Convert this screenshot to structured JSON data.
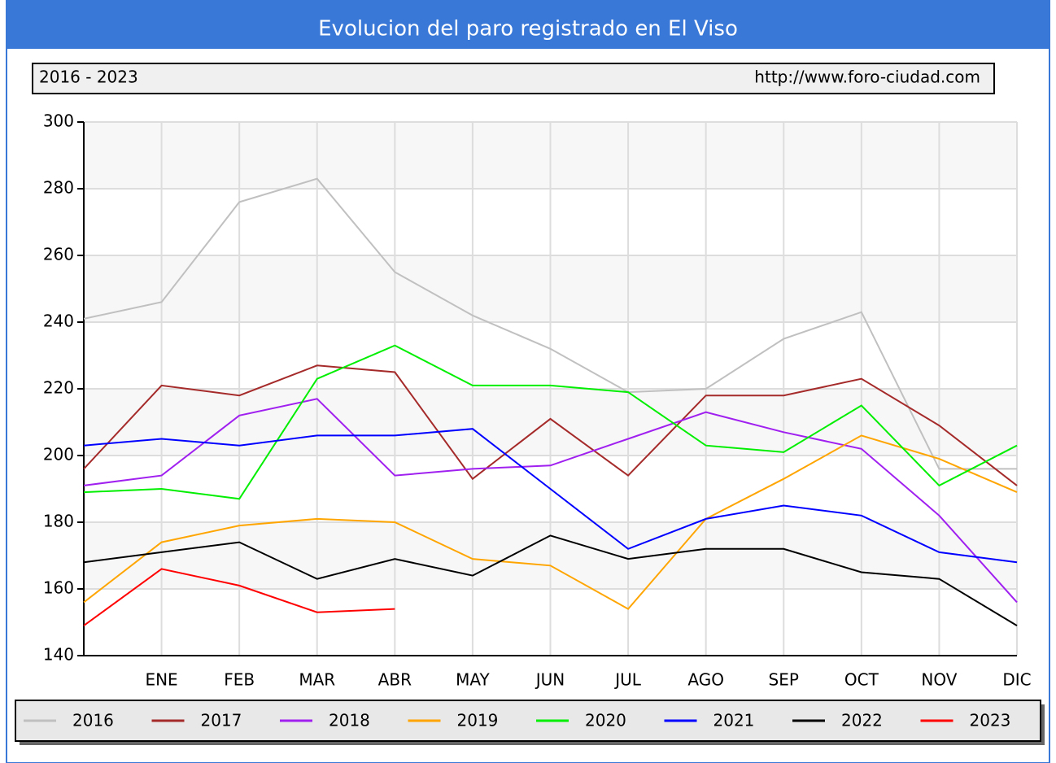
{
  "chart_data": {
    "type": "line",
    "title": "Evolucion del paro registrado en El Viso",
    "subtitle": "2016 - 2023",
    "source": "http://www.foro-ciudad.com",
    "categories": [
      null,
      "ENE",
      "FEB",
      "MAR",
      "ABR",
      "MAY",
      "JUN",
      "JUL",
      "AGO",
      "SEP",
      "OCT",
      "NOV",
      "DIC"
    ],
    "ylim": [
      140,
      300
    ],
    "yticks": [
      140,
      160,
      180,
      200,
      220,
      240,
      260,
      280,
      300
    ],
    "grid": true,
    "series": [
      {
        "name": "2016",
        "color": "#c0c0c0",
        "values": [
          241,
          246,
          276,
          283,
          255,
          242,
          232,
          219,
          220,
          235,
          243,
          196,
          196
        ]
      },
      {
        "name": "2017",
        "color": "#a52a2a",
        "values": [
          196,
          221,
          218,
          227,
          225,
          193,
          211,
          194,
          218,
          218,
          223,
          209,
          191
        ]
      },
      {
        "name": "2018",
        "color": "#a020f0",
        "values": [
          191,
          194,
          212,
          217,
          194,
          196,
          197,
          205,
          213,
          207,
          202,
          182,
          156
        ]
      },
      {
        "name": "2019",
        "color": "#ffa500",
        "values": [
          156,
          174,
          179,
          181,
          180,
          169,
          167,
          154,
          181,
          193,
          206,
          199,
          189
        ]
      },
      {
        "name": "2020",
        "color": "#00ee00",
        "values": [
          189,
          190,
          187,
          223,
          233,
          221,
          221,
          219,
          203,
          201,
          215,
          191,
          203
        ]
      },
      {
        "name": "2021",
        "color": "#0000ff",
        "values": [
          203,
          205,
          203,
          206,
          206,
          208,
          190,
          172,
          181,
          185,
          182,
          171,
          168
        ]
      },
      {
        "name": "2022",
        "color": "#000000",
        "values": [
          168,
          171,
          174,
          163,
          169,
          164,
          176,
          169,
          172,
          172,
          165,
          163,
          149
        ]
      },
      {
        "name": "2023",
        "color": "#ff0000",
        "values": [
          149,
          166,
          161,
          153,
          154,
          null,
          null,
          null,
          null,
          null,
          null,
          null,
          null
        ]
      }
    ]
  }
}
